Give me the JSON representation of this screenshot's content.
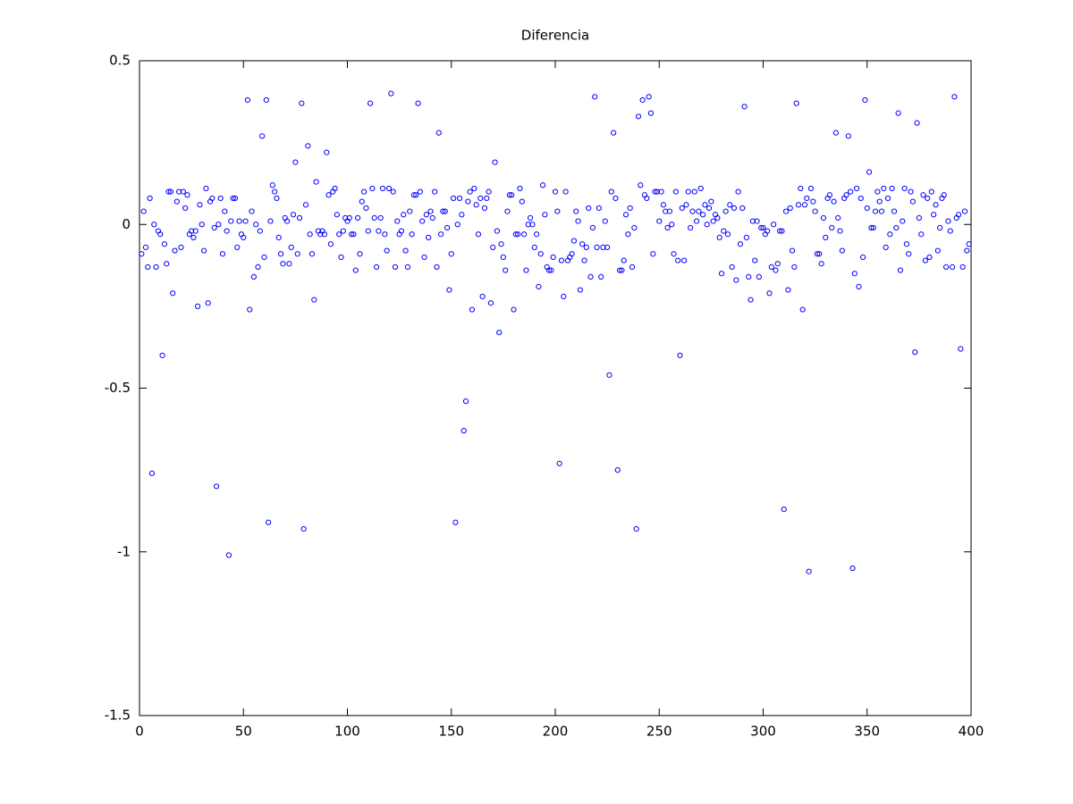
{
  "chart_data": {
    "type": "scatter",
    "title": "Diferencia",
    "color": "#0000ff",
    "xlim": [
      0,
      400
    ],
    "xticks": [
      0,
      50,
      100,
      150,
      200,
      250,
      300,
      350,
      400
    ],
    "ylim": [
      -1.5,
      0.5
    ],
    "yticks": [
      0.5,
      0,
      -0.5,
      -1,
      -1.5
    ],
    "x": [
      1,
      2,
      3,
      4,
      5,
      6,
      7,
      8,
      9,
      10,
      11,
      12,
      13,
      14,
      15,
      16,
      17,
      18,
      19,
      20,
      21,
      22,
      23,
      24,
      25,
      26,
      27,
      28,
      29,
      30,
      31,
      32,
      33,
      34,
      35,
      36,
      37,
      38,
      39,
      40,
      41,
      42,
      43,
      44,
      45,
      46,
      47,
      48,
      49,
      50,
      51,
      52,
      53,
      54,
      55,
      56,
      57,
      58,
      59,
      60,
      61,
      62,
      63,
      64,
      65,
      66,
      67,
      68,
      69,
      70,
      71,
      72,
      73,
      74,
      75,
      76,
      77,
      78,
      79,
      80,
      81,
      82,
      83,
      84,
      85,
      86,
      87,
      88,
      89,
      90,
      91,
      92,
      93,
      94,
      95,
      96,
      97,
      98,
      99,
      100,
      101,
      102,
      103,
      104,
      105,
      106,
      107,
      108,
      109,
      110,
      111,
      112,
      113,
      114,
      115,
      116,
      117,
      118,
      119,
      120,
      121,
      122,
      123,
      124,
      125,
      126,
      127,
      128,
      129,
      130,
      131,
      132,
      133,
      134,
      135,
      136,
      137,
      138,
      139,
      140,
      141,
      142,
      143,
      144,
      145,
      146,
      147,
      148,
      149,
      150,
      151,
      152,
      153,
      154,
      155,
      156,
      157,
      158,
      159,
      160,
      161,
      162,
      163,
      164,
      165,
      166,
      167,
      168,
      169,
      170,
      171,
      172,
      173,
      174,
      175,
      176,
      177,
      178,
      179,
      180,
      181,
      182,
      183,
      184,
      185,
      186,
      187,
      188,
      189,
      190,
      191,
      192,
      193,
      194,
      195,
      196,
      197,
      198,
      199,
      200,
      201,
      202,
      203,
      204,
      205,
      206,
      207,
      208,
      209,
      210,
      211,
      212,
      213,
      214,
      215,
      216,
      217,
      218,
      219,
      220,
      221,
      222,
      223,
      224,
      225,
      226,
      227,
      228,
      229,
      230,
      231,
      232,
      233,
      234,
      235,
      236,
      237,
      238,
      239,
      240,
      241,
      242,
      243,
      244,
      245,
      246,
      247,
      248,
      249,
      250,
      251,
      252,
      253,
      254,
      255,
      256,
      257,
      258,
      259,
      260,
      261,
      262,
      263,
      264,
      265,
      266,
      267,
      268,
      269,
      270,
      271,
      272,
      273,
      274,
      275,
      276,
      277,
      278,
      279,
      280,
      281,
      282,
      283,
      284,
      285,
      286,
      287,
      288,
      289,
      290,
      291,
      292,
      293,
      294,
      295,
      296,
      297,
      298,
      299,
      300,
      301,
      302,
      303,
      304,
      305,
      306,
      307,
      308,
      309,
      310,
      311,
      312,
      313,
      314,
      315,
      316,
      317,
      318,
      319,
      320,
      321,
      322,
      323,
      324,
      325,
      326,
      327,
      328,
      329,
      330,
      331,
      332,
      333,
      334,
      335,
      336,
      337,
      338,
      339,
      340,
      341,
      342,
      343,
      344,
      345,
      346,
      347,
      348,
      349,
      350,
      351,
      352,
      353,
      354,
      355,
      356,
      357,
      358,
      359,
      360,
      361,
      362,
      363,
      364,
      365,
      366,
      367,
      368,
      369,
      370,
      371,
      372,
      373,
      374,
      375,
      376,
      377,
      378,
      379,
      380,
      381,
      382,
      383,
      384,
      385,
      386,
      387,
      388,
      389,
      390,
      391,
      392,
      393,
      394,
      395,
      396,
      397,
      398,
      399
    ],
    "values": [
      -0.09,
      0.04,
      -0.07,
      -0.13,
      0.08,
      -0.76,
      0.0,
      -0.13,
      -0.02,
      -0.03,
      -0.4,
      -0.06,
      -0.12,
      0.1,
      0.1,
      -0.21,
      -0.08,
      0.07,
      0.1,
      -0.07,
      0.1,
      0.05,
      0.09,
      -0.03,
      -0.02,
      -0.04,
      -0.02,
      -0.25,
      0.06,
      0.0,
      -0.08,
      0.11,
      -0.24,
      0.07,
      0.08,
      -0.01,
      -0.8,
      0.0,
      0.08,
      -0.09,
      0.04,
      -0.02,
      -1.01,
      0.01,
      0.08,
      0.08,
      -0.07,
      0.01,
      -0.03,
      -0.04,
      0.01,
      0.38,
      -0.26,
      0.04,
      -0.16,
      0.0,
      -0.13,
      -0.02,
      0.27,
      -0.1,
      0.38,
      -0.91,
      0.01,
      0.12,
      0.1,
      0.08,
      -0.04,
      -0.09,
      -0.12,
      0.02,
      0.01,
      -0.12,
      -0.07,
      0.03,
      0.19,
      -0.09,
      0.02,
      0.37,
      -0.93,
      0.06,
      0.24,
      -0.03,
      -0.09,
      -0.23,
      0.13,
      -0.02,
      -0.03,
      -0.02,
      -0.03,
      0.22,
      0.09,
      -0.06,
      0.1,
      0.11,
      0.03,
      -0.03,
      -0.1,
      -0.02,
      0.02,
      0.01,
      0.02,
      -0.03,
      -0.03,
      -0.14,
      0.02,
      -0.09,
      0.07,
      0.1,
      0.05,
      -0.02,
      0.37,
      0.11,
      0.02,
      -0.13,
      -0.02,
      0.02,
      0.11,
      -0.03,
      -0.08,
      0.11,
      0.4,
      0.1,
      -0.13,
      0.01,
      -0.03,
      -0.02,
      0.03,
      -0.08,
      -0.13,
      0.04,
      -0.03,
      0.09,
      0.09,
      0.37,
      0.1,
      0.01,
      -0.1,
      0.03,
      -0.04,
      0.04,
      0.02,
      0.1,
      -0.13,
      0.28,
      -0.03,
      0.04,
      0.04,
      -0.01,
      -0.2,
      -0.09,
      0.08,
      -0.91,
      0.0,
      0.08,
      0.03,
      -0.63,
      -0.54,
      0.07,
      0.1,
      -0.26,
      0.11,
      0.06,
      -0.03,
      0.08,
      -0.22,
      0.05,
      0.08,
      0.1,
      -0.24,
      -0.07,
      0.19,
      -0.02,
      -0.33,
      -0.06,
      -0.1,
      -0.14,
      0.04,
      0.09,
      0.09,
      -0.26,
      -0.03,
      -0.03,
      0.11,
      0.07,
      -0.03,
      -0.14,
      0.0,
      0.02,
      0.0,
      -0.07,
      -0.03,
      -0.19,
      -0.09,
      0.12,
      0.03,
      -0.13,
      -0.14,
      -0.14,
      -0.1,
      0.1,
      0.04,
      -0.73,
      -0.11,
      -0.22,
      0.1,
      -0.11,
      -0.1,
      -0.09,
      -0.05,
      0.04,
      0.01,
      -0.2,
      -0.06,
      -0.11,
      -0.07,
      0.05,
      -0.16,
      -0.01,
      0.39,
      -0.07,
      0.05,
      -0.16,
      -0.07,
      0.01,
      -0.07,
      -0.46,
      0.1,
      0.28,
      0.08,
      -0.75,
      -0.14,
      -0.14,
      -0.11,
      0.03,
      -0.03,
      0.05,
      -0.13,
      -0.01,
      -0.93,
      0.33,
      0.12,
      0.38,
      0.09,
      0.08,
      0.39,
      0.34,
      -0.09,
      0.1,
      0.1,
      0.01,
      0.1,
      0.06,
      0.04,
      -0.01,
      0.04,
      0.0,
      -0.09,
      0.1,
      -0.11,
      -0.4,
      0.05,
      -0.11,
      0.06,
      0.1,
      -0.01,
      0.04,
      0.1,
      0.01,
      0.04,
      0.11,
      0.03,
      0.06,
      0.0,
      0.05,
      0.07,
      0.01,
      0.03,
      0.02,
      -0.04,
      -0.15,
      -0.02,
      0.04,
      -0.03,
      0.06,
      -0.13,
      0.05,
      -0.17,
      0.1,
      -0.06,
      0.05,
      0.36,
      -0.04,
      -0.16,
      -0.23,
      0.01,
      -0.11,
      0.01,
      -0.16,
      -0.01,
      -0.01,
      -0.03,
      -0.02,
      -0.21,
      -0.13,
      0.0,
      -0.14,
      -0.12,
      -0.02,
      -0.02,
      -0.87,
      0.04,
      -0.2,
      0.05,
      -0.08,
      -0.13,
      0.37,
      0.06,
      0.11,
      -0.26,
      0.06,
      0.08,
      -1.06,
      0.11,
      0.07,
      0.04,
      -0.09,
      -0.09,
      -0.12,
      0.02,
      -0.04,
      0.08,
      0.09,
      -0.01,
      0.07,
      0.28,
      0.02,
      -0.02,
      -0.08,
      0.08,
      0.09,
      0.27,
      0.1,
      -1.05,
      -0.15,
      0.11,
      -0.19,
      0.08,
      -0.1,
      0.38,
      0.05,
      0.16,
      -0.01,
      -0.01,
      0.04,
      0.1,
      0.07,
      0.04,
      0.11,
      -0.07,
      0.08,
      -0.03,
      0.11,
      0.04,
      -0.01,
      0.34,
      -0.14,
      0.01,
      0.11,
      -0.06,
      -0.09,
      0.1,
      0.07,
      -0.39,
      0.31,
      0.02,
      -0.03,
      0.09,
      -0.11,
      0.08,
      -0.1,
      0.1,
      0.03,
      0.06,
      -0.08,
      -0.01,
      0.08,
      0.09,
      -0.13,
      0.01,
      -0.02,
      -0.13,
      0.39,
      0.02,
      0.03,
      -0.38,
      -0.13,
      0.04,
      -0.08,
      -0.06
    ]
  }
}
